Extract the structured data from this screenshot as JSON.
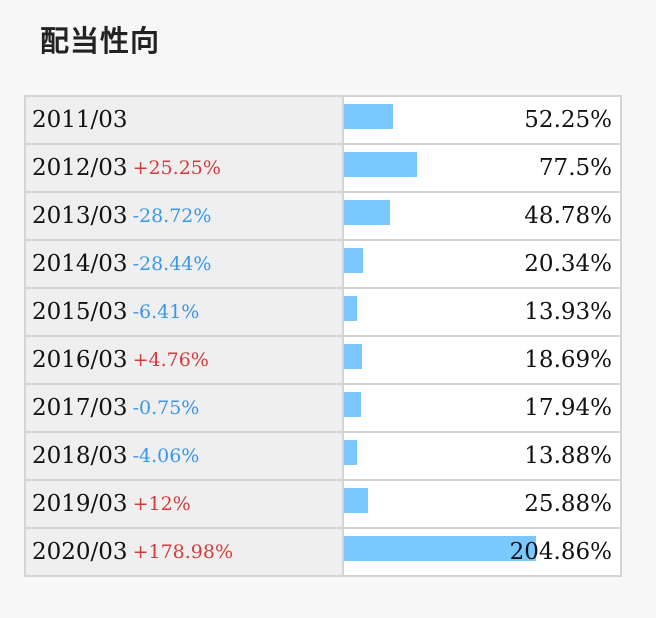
{
  "title": "配当性向",
  "colors": {
    "bar": "#7ac8ff",
    "up": "#d23c3c",
    "down": "#3a97e8"
  },
  "rows": [
    {
      "year": "2011/03",
      "change": "",
      "direction": "",
      "value": "52.25%",
      "ratio": 52.25
    },
    {
      "year": "2012/03",
      "change": "+25.25%",
      "direction": "up",
      "value": "77.5%",
      "ratio": 77.5
    },
    {
      "year": "2013/03",
      "change": "-28.72%",
      "direction": "down",
      "value": "48.78%",
      "ratio": 48.78
    },
    {
      "year": "2014/03",
      "change": "-28.44%",
      "direction": "down",
      "value": "20.34%",
      "ratio": 20.34
    },
    {
      "year": "2015/03",
      "change": "-6.41%",
      "direction": "down",
      "value": "13.93%",
      "ratio": 13.93
    },
    {
      "year": "2016/03",
      "change": "+4.76%",
      "direction": "up",
      "value": "18.69%",
      "ratio": 18.69
    },
    {
      "year": "2017/03",
      "change": "-0.75%",
      "direction": "down",
      "value": "17.94%",
      "ratio": 17.94
    },
    {
      "year": "2018/03",
      "change": "-4.06%",
      "direction": "down",
      "value": "13.88%",
      "ratio": 13.88
    },
    {
      "year": "2019/03",
      "change": "+12%",
      "direction": "up",
      "value": "25.88%",
      "ratio": 25.88
    },
    {
      "year": "2020/03",
      "change": "+178.98%",
      "direction": "up",
      "value": "204.86%",
      "ratio": 204.86
    }
  ]
}
